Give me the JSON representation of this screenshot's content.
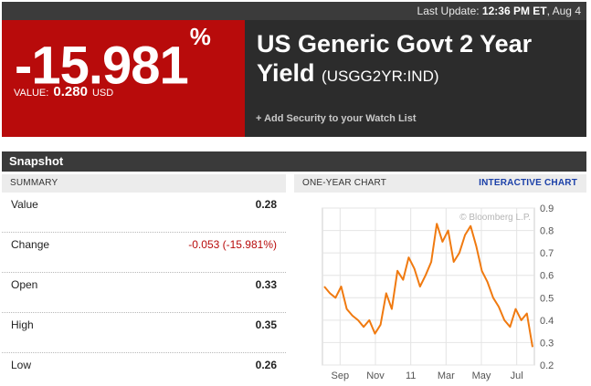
{
  "header": {
    "last_update_label": "Last Update:",
    "last_update_time": "12:36 PM ET",
    "last_update_date": ", Aug 4"
  },
  "quote": {
    "change_pct": "-15.981",
    "pct_sign": "%",
    "value_label": "VALUE:",
    "value": "0.280",
    "currency": "USD"
  },
  "security": {
    "name": "US Generic Govt 2 Year Yield",
    "ticker": "(USGG2YR:IND)",
    "watchlist_link": "+ Add Security to your Watch List"
  },
  "snapshot": {
    "title": "Snapshot",
    "summary_title": "SUMMARY",
    "rows": [
      {
        "label": "Value",
        "value": "0.28"
      },
      {
        "label": "Change",
        "value": "-0.053 (-15.981%)"
      },
      {
        "label": "Open",
        "value": "0.33"
      },
      {
        "label": "High",
        "value": "0.35"
      },
      {
        "label": "Low",
        "value": "0.26"
      }
    ]
  },
  "chart": {
    "title": "ONE-YEAR CHART",
    "interactive_link": "INTERACTIVE CHART",
    "watermark": "© Bloomberg L.P.",
    "line_color": "#f07a10"
  },
  "chart_data": {
    "type": "line",
    "x": [
      "Aug",
      "Aug",
      "Sep",
      "Sep",
      "Sep",
      "Oct",
      "Oct",
      "Oct",
      "Oct",
      "Nov",
      "Nov",
      "Dec",
      "Dec",
      "Dec",
      "Jan",
      "Jan",
      "Jan",
      "Feb",
      "Feb",
      "Feb",
      "Mar",
      "Mar",
      "Mar",
      "Apr",
      "Apr",
      "Apr",
      "May",
      "May",
      "May",
      "May",
      "Jun",
      "Jun",
      "Jun",
      "Jul",
      "Jul",
      "Jul",
      "Jul",
      "Aug"
    ],
    "values": [
      0.55,
      0.52,
      0.5,
      0.55,
      0.45,
      0.42,
      0.4,
      0.37,
      0.4,
      0.34,
      0.38,
      0.52,
      0.45,
      0.62,
      0.58,
      0.68,
      0.63,
      0.55,
      0.6,
      0.66,
      0.83,
      0.75,
      0.8,
      0.66,
      0.7,
      0.78,
      0.82,
      0.73,
      0.62,
      0.57,
      0.5,
      0.46,
      0.4,
      0.37,
      0.45,
      0.4,
      0.43,
      0.28
    ],
    "x_ticks": [
      "Sep",
      "Nov",
      "11",
      "Mar",
      "May",
      "Jul"
    ],
    "y_ticks": [
      "0.9",
      "0.8",
      "0.7",
      "0.6",
      "0.5",
      "0.4",
      "0.3",
      "0.2"
    ],
    "ylim": [
      0.2,
      0.9
    ],
    "grid": true
  }
}
